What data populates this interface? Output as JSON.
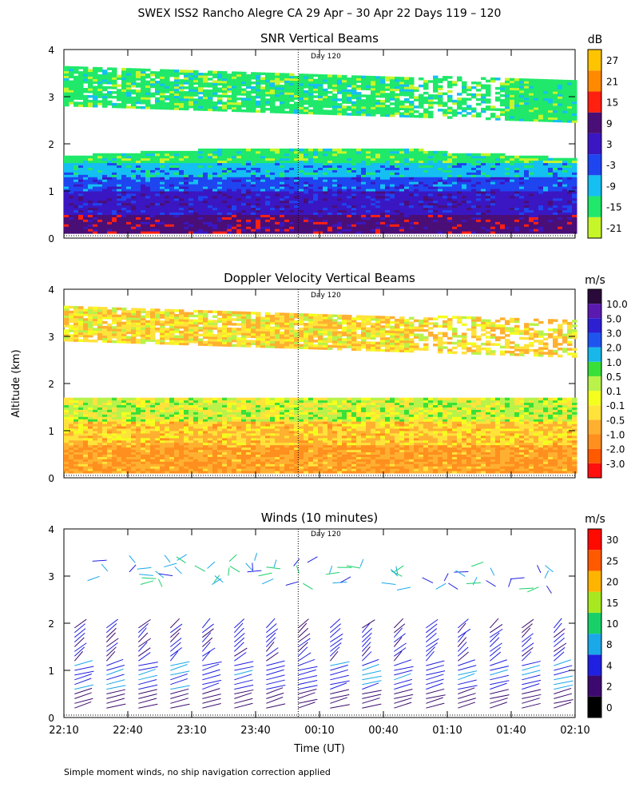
{
  "title": "SWEX ISS2 Rancho Alegre CA  29 Apr – 30 Apr 22 Days 119 – 120",
  "ylabel": "Altitude (km)",
  "xlabel": "Time (UT)",
  "footnote": "Simple moment winds, no ship navigation correction applied",
  "day_marker_label": "Day 120",
  "colors": {
    "snr": [
      "#c6f52a",
      "#20e86a",
      "#15bff2",
      "#1e45f0",
      "#3a17c2",
      "#4a0e77",
      "#ff2010",
      "#ff8a00",
      "#ffc400"
    ],
    "vel": [
      "#ff1010",
      "#ff5a00",
      "#ff8f1e",
      "#ffb030",
      "#ffe23a",
      "#f4ff1e",
      "#b8f24a",
      "#38e038",
      "#18b7ea",
      "#1f55ee",
      "#2d1fd2",
      "#5a1ab0",
      "#2a0a3a"
    ],
    "wind": [
      "#000000",
      "#3c0a6e",
      "#2020e0",
      "#1aa8e8",
      "#18d068",
      "#a8e820",
      "#ffb400",
      "#ff5a00",
      "#ff0a00"
    ]
  },
  "chart_data": [
    {
      "type": "heatmap",
      "title": "SNR Vertical Beams",
      "xlabel": "",
      "ylabel": "Altitude (km)",
      "xlim": [
        "22:10",
        "02:10"
      ],
      "ylim": [
        0,
        4
      ],
      "yticks": [
        0,
        1,
        2,
        3,
        4
      ],
      "xticks": [
        "22:10",
        "22:40",
        "23:10",
        "23:40",
        "00:10",
        "00:40",
        "01:10",
        "01:40",
        "02:10"
      ],
      "legend_unit": "dB",
      "legend_labels": [
        "-21",
        "-15",
        "-9",
        "-3",
        "3",
        "9",
        "15",
        "21",
        "27"
      ],
      "day_marker_time": "00:00",
      "layers": [
        {
          "altitude_range_km": [
            0.1,
            0.5
          ],
          "snr_db": 9
        },
        {
          "altitude_range_km": [
            0.5,
            1.0
          ],
          "snr_db": 3
        },
        {
          "altitude_range_km": [
            1.0,
            1.3
          ],
          "snr_db": -3
        },
        {
          "altitude_range_km": [
            1.3,
            1.6
          ],
          "snr_db": -9
        },
        {
          "altitude_range_km": [
            1.6,
            1.9
          ],
          "snr_db": -15
        },
        {
          "altitude_range_km": [
            2.8,
            3.6
          ],
          "snr_db": -15
        }
      ]
    },
    {
      "type": "heatmap",
      "title": "Doppler Velocity Vertical Beams",
      "xlabel": "",
      "ylabel": "Altitude (km)",
      "xlim": [
        "22:10",
        "02:10"
      ],
      "ylim": [
        0,
        4
      ],
      "yticks": [
        0,
        1,
        2,
        3,
        4
      ],
      "xticks": [
        "22:10",
        "22:40",
        "23:10",
        "23:40",
        "00:10",
        "00:40",
        "01:10",
        "01:40",
        "02:10"
      ],
      "legend_unit": "m/s",
      "legend_labels": [
        "10.0",
        "5.0",
        "3.0",
        "2.0",
        "1.0",
        "0.5",
        "0.1",
        "-0.1",
        "-0.5",
        "-1.0",
        "-2.0",
        "-3.0"
      ],
      "day_marker_time": "00:00",
      "layers": [
        {
          "altitude_range_km": [
            0.1,
            0.7
          ],
          "velocity_ms": -1.0
        },
        {
          "altitude_range_km": [
            0.7,
            1.2
          ],
          "velocity_ms": -0.5
        },
        {
          "altitude_range_km": [
            1.2,
            1.7
          ],
          "velocity_ms": 0.1
        },
        {
          "altitude_range_km": [
            2.9,
            3.6
          ],
          "velocity_ms": -0.3
        }
      ]
    },
    {
      "type": "scatter",
      "title": "Winds (10 minutes)",
      "xlabel": "Time (UT)",
      "ylabel": "Altitude (km)",
      "xlim": [
        "22:10",
        "02:10"
      ],
      "ylim": [
        0,
        4
      ],
      "yticks": [
        0,
        1,
        2,
        3,
        4
      ],
      "xticks": [
        "22:10",
        "22:40",
        "23:10",
        "23:40",
        "00:10",
        "00:40",
        "01:10",
        "01:40",
        "02:10"
      ],
      "legend_unit": "m/s",
      "legend_labels": [
        "0",
        "2",
        "4",
        "8",
        "10",
        "15",
        "20",
        "25",
        "30"
      ],
      "day_marker_time": "00:00",
      "profile_times": [
        "22:15",
        "22:30",
        "22:45",
        "23:00",
        "23:15",
        "23:30",
        "23:45",
        "00:00",
        "00:15",
        "00:30",
        "00:45",
        "01:00",
        "01:15",
        "01:30",
        "01:45",
        "02:00"
      ],
      "profile_top_km": 2.0,
      "upper_layer_km": [
        2.8,
        3.4
      ]
    }
  ]
}
